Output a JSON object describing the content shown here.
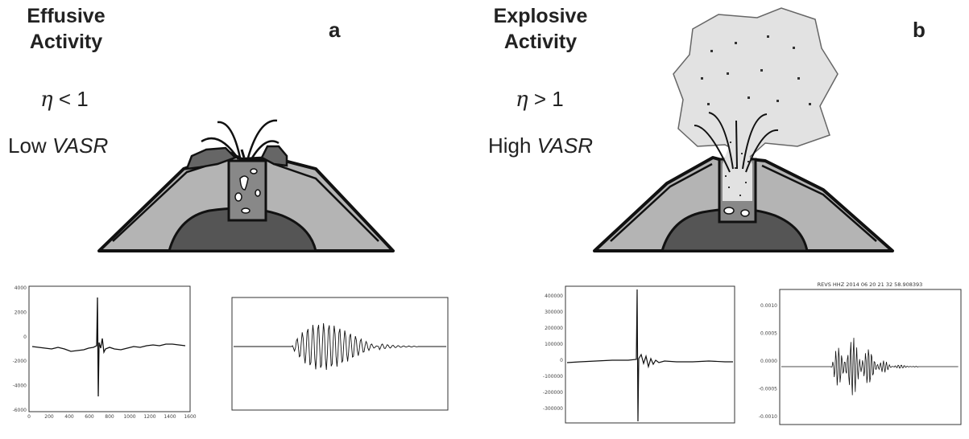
{
  "panel_a": {
    "heading_line1": "Effusive",
    "heading_line2": "Activity",
    "eta_symbol": "η",
    "eta_relation": "< 1",
    "vasr_prefix": "Low",
    "vasr_term": "VASR",
    "letter": "a",
    "plot1": {
      "y_ticks": [
        "4000",
        "2000",
        "0",
        "-2000",
        "-4000",
        "-6000"
      ],
      "x_ticks": [
        "0",
        "200",
        "400",
        "600",
        "800",
        "1000",
        "1200",
        "1400",
        "1600"
      ]
    },
    "plot2": {
      "title": "",
      "y_ticks": [
        "",
        "",
        "",
        "",
        "",
        ""
      ],
      "x_ticks": [
        "",
        "",
        "",
        "",
        "",
        ""
      ]
    }
  },
  "panel_b": {
    "heading_line1": "Explosive",
    "heading_line2": "Activity",
    "eta_symbol": "η",
    "eta_relation": "> 1",
    "vasr_prefix": "High",
    "vasr_term": "VASR",
    "letter": "b",
    "plot1": {
      "y_ticks": [
        "400000",
        "300000",
        "200000",
        "100000",
        "0",
        "-100000",
        "-200000",
        "-300000"
      ],
      "x_ticks": [
        "",
        "",
        "",
        "",
        ""
      ]
    },
    "plot2": {
      "title": "REVS HHZ 2014 06 20 21 32 58.908393",
      "y_ticks": [
        "0.0010",
        "0.0005",
        "0.0000",
        "-0.0005",
        "-0.0010"
      ],
      "x_ticks": [
        "",
        "",
        "",
        "",
        ""
      ]
    }
  },
  "colors": {
    "cone_fill": "#b4b4b4",
    "dark_core": "#555555",
    "vent_fill": "#888888",
    "cloud_fill": "#e2e2e2",
    "outline": "#111111"
  }
}
